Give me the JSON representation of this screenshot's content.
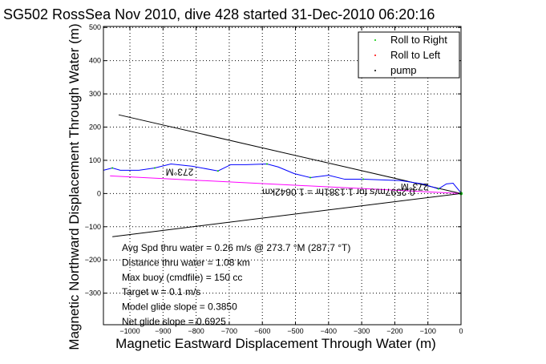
{
  "chart_data": {
    "type": "line",
    "title": "SG502 RossSea Nov 2010, dive 428 started 31-Dec-2010 06:20:16",
    "xlabel": "Magnetic Eastward Displacement Through Water (m)",
    "ylabel": "Magnetic Northward Displacement Through Water (m)",
    "xlim": [
      -1080,
      0
    ],
    "ylim": [
      -395,
      503
    ],
    "xticks": [
      -1000,
      -900,
      -800,
      -700,
      -600,
      -500,
      -400,
      -300,
      -200,
      -100,
      0
    ],
    "xtick_labels": [
      "−1000",
      "−900",
      "−800",
      "−700",
      "−600",
      "−500",
      "−400",
      "−300",
      "−200",
      "−100",
      "0"
    ],
    "yticks": [
      -300,
      -200,
      -100,
      0,
      100,
      200,
      300,
      400,
      500
    ],
    "ytick_labels": [
      "−300",
      "−200",
      "−100",
      "0",
      "100",
      "200",
      "300",
      "400",
      "500"
    ],
    "grid": true,
    "legend": {
      "placement": "top-right",
      "entries": [
        {
          "label": "Roll to Right",
          "color": "#00cc00"
        },
        {
          "label": "Roll to Left",
          "color": "#ff0000"
        },
        {
          "label": "pump",
          "color": "#000000"
        }
      ]
    },
    "series": [
      {
        "name": "track",
        "color": "#0000ff",
        "x": [
          -1080,
          -1053,
          -1029,
          -973,
          -925,
          -876,
          -811,
          -734,
          -695,
          -649,
          -586,
          -552,
          -504,
          -455,
          -400,
          -351,
          -295,
          -182,
          -116,
          -68,
          -44,
          -24,
          0
        ],
        "y": [
          70,
          77,
          70,
          70,
          77,
          89,
          82,
          68,
          87,
          87,
          89,
          80,
          60,
          48,
          55,
          43,
          43,
          39,
          29,
          14,
          29,
          31,
          2
        ]
      },
      {
        "name": "net displacement",
        "color": "#ff00ff",
        "x": [
          -1060,
          0
        ],
        "y": [
          53,
          0
        ]
      },
      {
        "name": "upper bound",
        "color": "#000000",
        "x": [
          -1034,
          0
        ],
        "y": [
          237,
          0
        ]
      },
      {
        "name": "lower bound",
        "color": "#000000",
        "x": [
          -1053,
          0
        ],
        "y": [
          -130,
          0
        ]
      }
    ],
    "annotations": [
      {
        "text": "273°M",
        "x": -850,
        "y": 75,
        "rotation": 180
      },
      {
        "text": "273°M",
        "x": -140,
        "y": 30,
        "rotation": 180
      },
      {
        "text": "0.2597m/s for 1.1381hr = 1.0642km",
        "x": -370,
        "y": 14,
        "rotation": 180
      }
    ],
    "info_lines": [
      "Avg Spd thru water =  0.26 m/s @ 273.7   °M (287.7 °T)",
      "Distance thru water =  1.08 km",
      "Max buoy (cmdfile) = 150 cc",
      "Target w = 0.1 m/s",
      "Model glide slope = 0.3850",
      "Net glide slope = 0.6925"
    ]
  }
}
